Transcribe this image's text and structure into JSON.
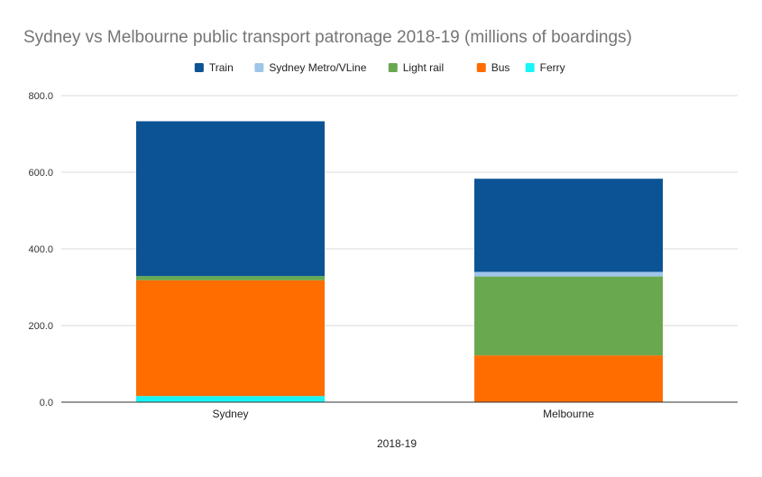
{
  "chart_data": {
    "type": "stacked-bar",
    "title": "Sydney vs Melbourne public transport patronage 2018-19 (millions of boardings)",
    "xlabel": "2018-19",
    "ylabel": "",
    "categories": [
      "Sydney",
      "Melbourne"
    ],
    "ylim": [
      0,
      800
    ],
    "yticks": [
      0,
      200,
      400,
      600,
      800
    ],
    "ytick_labels": [
      "0.0",
      "200.0",
      "400.0",
      "600.0",
      "800.0"
    ],
    "grid": true,
    "legend_position": "top",
    "series": [
      {
        "name": "Ferry",
        "color": "#19f5f5",
        "values": [
          16,
          0
        ]
      },
      {
        "name": "Bus",
        "color": "#ff6d01",
        "values": [
          302,
          122
        ]
      },
      {
        "name": "Light rail",
        "color": "#6aa84f",
        "values": [
          11,
          206
        ]
      },
      {
        "name": "Sydney Metro/VLine",
        "color": "#9fc5e8",
        "values": [
          0,
          12
        ]
      },
      {
        "name": "Train",
        "color": "#0b5394",
        "values": [
          404,
          243
        ]
      }
    ],
    "legend_order": [
      "Train",
      "Sydney Metro/VLine",
      "Light rail",
      "Bus",
      "Ferry"
    ]
  }
}
